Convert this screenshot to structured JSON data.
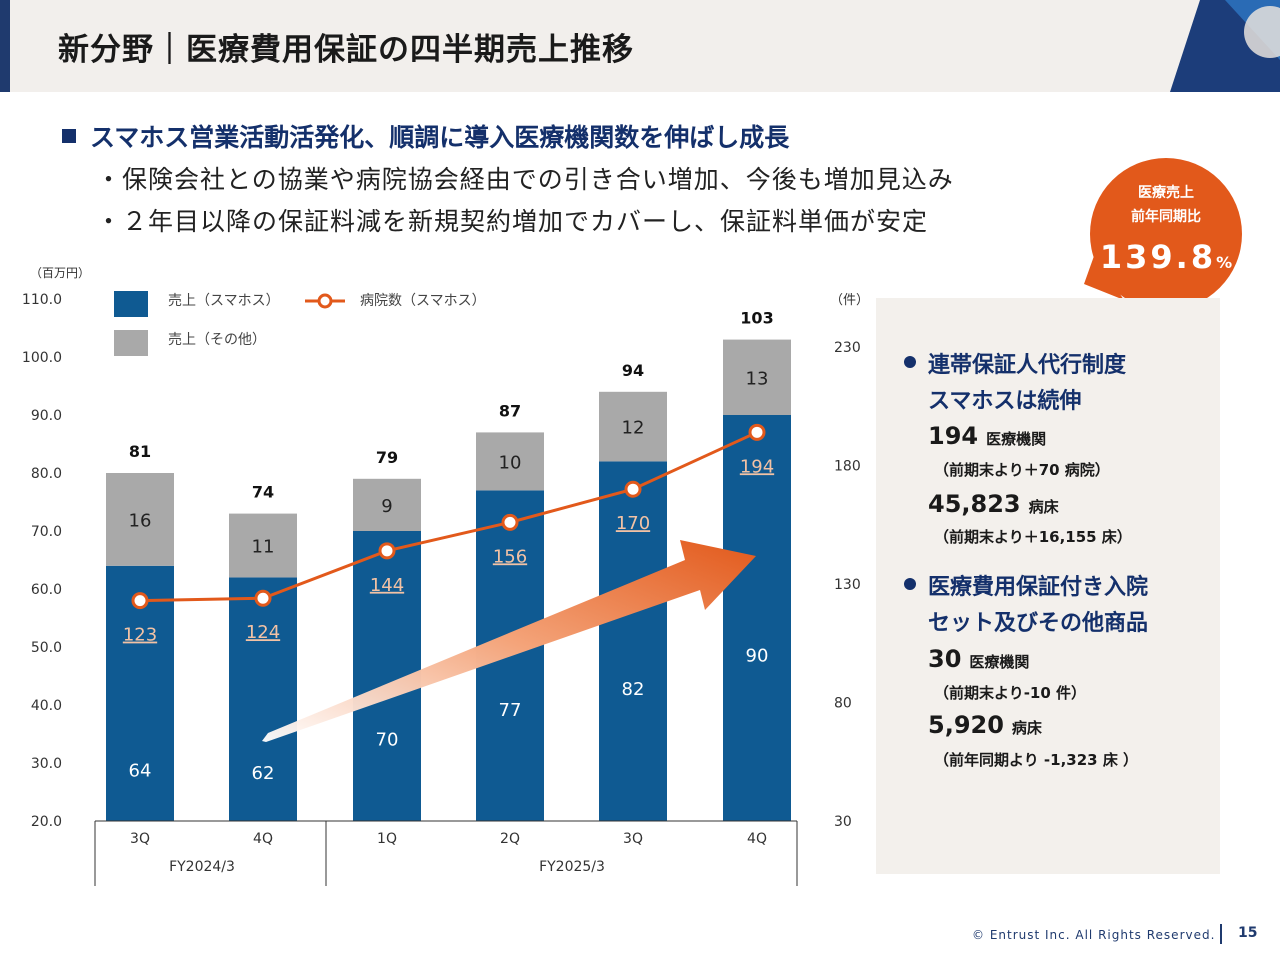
{
  "header": {
    "title": "新分野｜医療費用保証の四半期売上推移"
  },
  "headline": "スマホス営業活動活発化、順調に導入医療機関数を伸ばし成長",
  "sub_points": [
    "・保険会社との協業や病院協会経由での引き合い増加、今後も増加見込み",
    "・２年目以降の保証料減を新規契約増加でカバーし、保証料単価が安定"
  ],
  "badge": {
    "line1": "医療売上",
    "line2": "前年同期比",
    "value": "139.8",
    "unit": "%"
  },
  "panel": {
    "section1": {
      "title_line1": "連帯保証人代行制度",
      "title_line2": "スマホスは続伸",
      "stat1_value": "194",
      "stat1_unit": "医療機関",
      "stat1_note": "（前期末より＋70 病院）",
      "stat2_value": "45,823",
      "stat2_unit": "病床",
      "stat2_note": "（前期末より＋16,155 床）"
    },
    "section2": {
      "title_line1": "医療費用保証付き入院",
      "title_line2": "セット及びその他商品",
      "stat1_value": "30",
      "stat1_unit": "医療機関",
      "stat1_note": "（前期末より-10 件）",
      "stat2_value": "5,920",
      "stat2_unit": "病床",
      "stat2_note": "（前年同期より -1,323 床 ）"
    }
  },
  "footer": {
    "copyright": "© Entrust Inc. All Rights Reserved.",
    "page": "15"
  },
  "chart_data": {
    "type": "bar",
    "stacked": true,
    "categories": [
      "3Q",
      "4Q",
      "1Q",
      "2Q",
      "3Q",
      "4Q"
    ],
    "groups": [
      {
        "label": "FY2024/3",
        "count": 2
      },
      {
        "label": "FY2025/3",
        "count": 4
      }
    ],
    "series": [
      {
        "name": "売上（スマホス）",
        "values": [
          64,
          62,
          70,
          77,
          82,
          90
        ],
        "color": "#0f5a92"
      },
      {
        "name": "売上（その他）",
        "values": [
          16,
          11,
          9,
          10,
          12,
          13
        ],
        "color": "#a9a9a9"
      }
    ],
    "totals": [
      81,
      74,
      79,
      87,
      94,
      103
    ],
    "line_series": {
      "name": "病院数（スマホス）",
      "values": [
        123,
        124,
        144,
        156,
        170,
        194
      ],
      "color": "#e2591b",
      "axis": "right"
    },
    "y_left": {
      "label": "（百万円）",
      "min": 20,
      "max": 110,
      "ticks": [
        "20.0",
        "30.0",
        "40.0",
        "50.0",
        "60.0",
        "70.0",
        "80.0",
        "90.0",
        "100.0",
        "110.0"
      ]
    },
    "y_right": {
      "label": "（件）",
      "min": 30,
      "max": 230,
      "ticks": [
        "30",
        "80",
        "130",
        "180",
        "230"
      ]
    },
    "legend": {
      "position": "top-left"
    },
    "grid": false
  }
}
